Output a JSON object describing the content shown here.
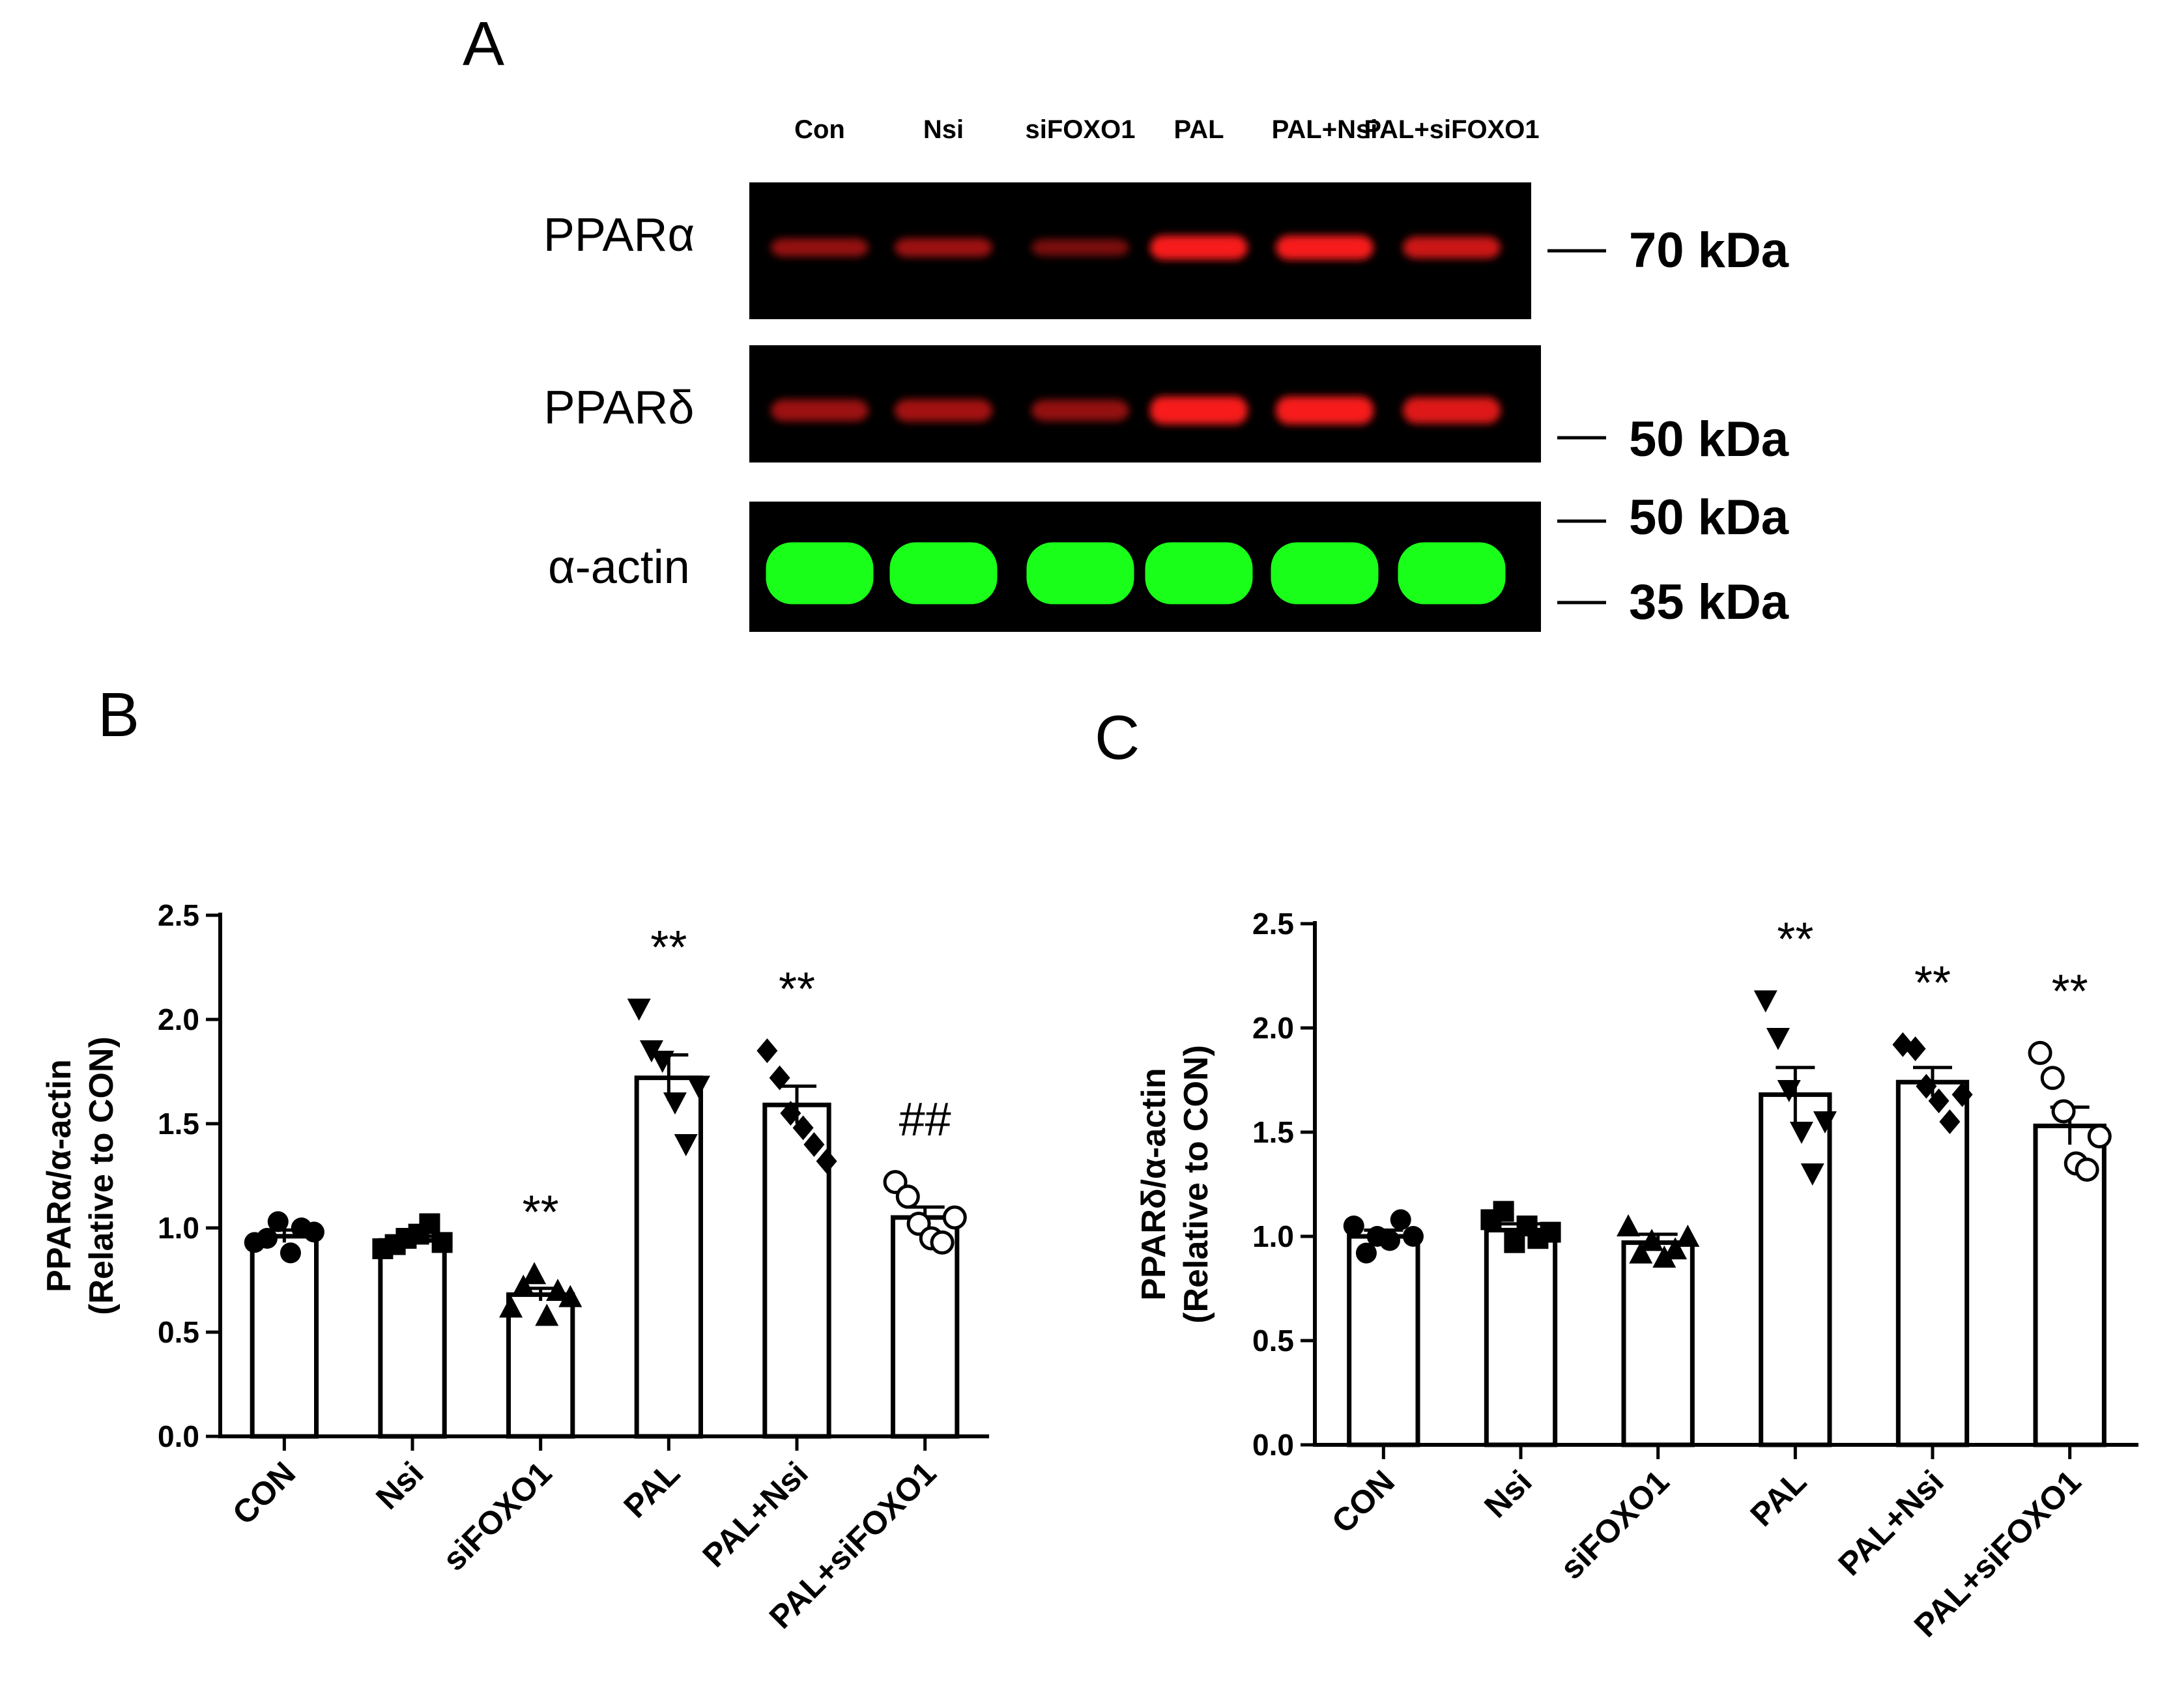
{
  "figure": {
    "panel_a_letter": "A",
    "panel_b_letter": "B",
    "panel_c_letter": "C"
  },
  "blot": {
    "lanes": [
      "Con",
      "Nsi",
      "siFOXO1",
      "PAL",
      "PAL+Nsi",
      "PAL+siFOXO1"
    ],
    "rows": [
      {
        "label": "PPARα",
        "color": "#ff1a1a",
        "band_intensity": [
          0.35,
          0.4,
          0.2,
          0.95,
          0.95,
          0.7
        ],
        "markers": [
          "70 kDa"
        ]
      },
      {
        "label": "PPARδ",
        "color": "#ff1a1a",
        "band_intensity": [
          0.4,
          0.45,
          0.35,
          0.95,
          0.95,
          0.8
        ],
        "markers": [
          "50 kDa"
        ]
      },
      {
        "label": "α-actin",
        "color": "#1aff1a",
        "band_intensity": [
          1,
          1,
          1,
          1,
          1,
          1
        ],
        "markers": [
          "50 kDa",
          "35 kDa"
        ]
      }
    ],
    "background_color": "#000000"
  },
  "chart_data": [
    {
      "type": "bar",
      "panel": "B",
      "categories": [
        "CON",
        "Nsi",
        "siFOXO1",
        "PAL",
        "PAL+Nsi",
        "PAL+siFOXO1"
      ],
      "values": [
        0.96,
        0.94,
        0.68,
        1.72,
        1.59,
        1.05
      ],
      "sem": [
        0.03,
        0.02,
        0.03,
        0.11,
        0.09,
        0.05
      ],
      "points": [
        [
          0.93,
          0.95,
          1.03,
          0.88,
          1.0,
          0.98
        ],
        [
          0.9,
          0.92,
          0.95,
          0.97,
          1.02,
          0.93
        ],
        [
          0.62,
          0.72,
          0.78,
          0.58,
          0.7,
          0.67
        ],
        [
          2.05,
          1.85,
          1.8,
          1.6,
          1.4,
          1.68
        ],
        [
          1.85,
          1.72,
          1.55,
          1.48,
          1.4,
          1.32
        ],
        [
          1.22,
          1.15,
          1.02,
          0.95,
          0.93,
          1.05
        ]
      ],
      "markers": [
        "circle",
        "square",
        "triangle-up",
        "triangle-down",
        "diamond",
        "circle-open"
      ],
      "annotations": [
        "",
        "",
        "**",
        "**",
        "**",
        "##"
      ],
      "ylabel_line1": "PPARα/α-actin",
      "ylabel_line2": "(Relative to CON)",
      "yticks": [
        "0.0",
        "0.5",
        "1.0",
        "1.5",
        "2.0",
        "2.5"
      ],
      "ylim": [
        0,
        2.5
      ]
    },
    {
      "type": "bar",
      "panel": "C",
      "categories": [
        "CON",
        "Nsi",
        "siFOXO1",
        "PAL",
        "PAL+Nsi",
        "PAL+siFOXO1"
      ],
      "values": [
        1.0,
        1.03,
        0.97,
        1.68,
        1.74,
        1.53
      ],
      "sem": [
        0.03,
        0.03,
        0.04,
        0.13,
        0.07,
        0.09
      ],
      "points": [
        [
          1.05,
          0.92,
          1.0,
          0.98,
          1.08,
          1.0
        ],
        [
          1.08,
          1.12,
          0.97,
          1.05,
          0.99,
          1.02
        ],
        [
          1.05,
          0.92,
          0.98,
          0.9,
          0.94,
          1.0
        ],
        [
          2.13,
          1.95,
          1.7,
          1.5,
          1.3,
          1.55
        ],
        [
          1.92,
          1.9,
          1.72,
          1.65,
          1.55,
          1.68
        ],
        [
          1.88,
          1.76,
          1.6,
          1.35,
          1.32,
          1.48
        ]
      ],
      "markers": [
        "circle",
        "square",
        "triangle-up",
        "triangle-down",
        "diamond",
        "circle-open"
      ],
      "annotations": [
        "",
        "",
        "",
        "**",
        "**",
        "**"
      ],
      "ylabel_line1": "PPARδ/α-actin",
      "ylabel_line2": "(Relative to CON)",
      "yticks": [
        "0.0",
        "0.5",
        "1.0",
        "1.5",
        "2.0",
        "2.5"
      ],
      "ylim": [
        0,
        2.5
      ]
    }
  ]
}
